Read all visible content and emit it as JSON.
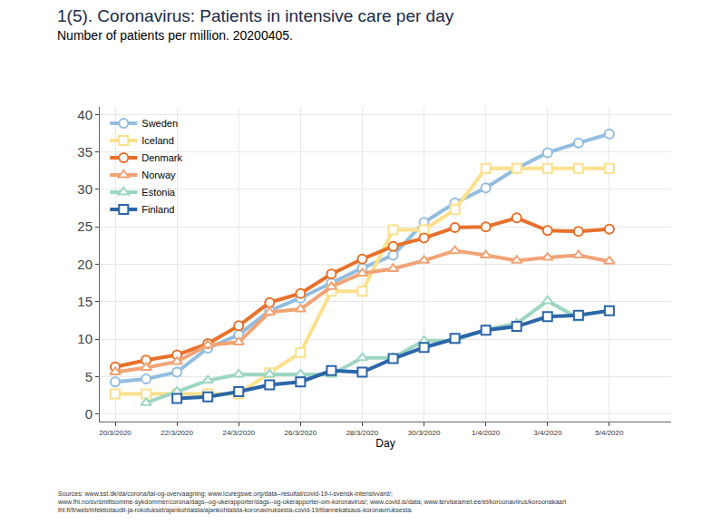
{
  "chart_data": {
    "type": "line",
    "title": "1(5). Coronavirus: Patients in intensive care per day",
    "subtitle": "Number of patients per million. 20200405.",
    "x_label": "Day",
    "source": [
      "Sources: www.sst.dk/da/corona/tal-og-overvaagning; www.icuregswe.org/data--resultat/covid-19-i-svensk-intensivvard/;",
      "www.fhi.no/sv/smittsomme-sykdommer/corona/dags--og-ukerapporter/dags--og-ukerapporter-om-koronavirus/; www.covid.is/data; www.terviseamet.ee/et/koroonaviirus/koroonakaart",
      "thl.fi/fi/web/infektiotaudit-ja-rokotukset/ajankohtaista/ajankohtaista-koronaviruksesta-covid-19/tilannekatsaus-koronaviruksesta."
    ],
    "categories": [
      "20/3/2020",
      null,
      "22/3/2020",
      null,
      "24/3/2020",
      null,
      "26/3/2020",
      null,
      "28/3/2020",
      null,
      "30/3/2020",
      null,
      "1/4/2020",
      null,
      "3/4/2020",
      null,
      "5/4/2020"
    ],
    "series": [
      {
        "name": "Sweden",
        "color": "#92bde0",
        "marker": "circle",
        "values": [
          4.3,
          4.7,
          5.6,
          8.8,
          10.6,
          13.8,
          15.5,
          17.5,
          19.5,
          21.2,
          25.6,
          28.2,
          30.2,
          32.8,
          34.9,
          36.2,
          37.4
        ]
      },
      {
        "name": "Iceland",
        "color": "#fde08c",
        "marker": "square",
        "values": [
          2.7,
          2.7,
          2.7,
          2.7,
          2.7,
          5.5,
          8.2,
          16.4,
          16.4,
          24.6,
          24.6,
          27.3,
          32.8,
          32.8,
          32.8,
          32.8,
          32.8
        ]
      },
      {
        "name": "Denmark",
        "color": "#e8702a",
        "marker": "circle",
        "values": [
          6.3,
          7.2,
          7.9,
          9.4,
          11.8,
          14.9,
          16.1,
          18.7,
          20.7,
          22.4,
          23.5,
          24.9,
          25.0,
          26.2,
          24.5,
          24.4,
          24.7
        ]
      },
      {
        "name": "Norway",
        "color": "#f2a375",
        "marker": "triangle-up",
        "values": [
          5.6,
          6.2,
          7.0,
          9.2,
          9.6,
          13.6,
          14.0,
          17.0,
          18.8,
          19.4,
          20.5,
          21.8,
          21.2,
          20.5,
          20.9,
          21.2,
          20.4
        ]
      },
      {
        "name": "Estonia",
        "color": "#9dd6c3",
        "marker": "triangle-up",
        "values": [
          null,
          1.5,
          3.0,
          4.5,
          5.3,
          5.3,
          5.3,
          5.3,
          7.5,
          7.5,
          9.8,
          9.8,
          11.3,
          12.1,
          15.1,
          12.8,
          null
        ]
      },
      {
        "name": "Finland",
        "color": "#2b66a8",
        "marker": "square",
        "values": [
          null,
          null,
          2.1,
          2.3,
          3.0,
          3.9,
          4.3,
          5.8,
          5.6,
          7.4,
          8.9,
          10.1,
          11.2,
          11.7,
          13.0,
          13.2,
          13.8
        ]
      }
    ],
    "ylim": [
      -1,
      41
    ],
    "yticks": [
      0,
      5,
      10,
      15,
      20,
      25,
      30,
      35,
      40
    ],
    "grid": true,
    "legend": "upper left"
  }
}
